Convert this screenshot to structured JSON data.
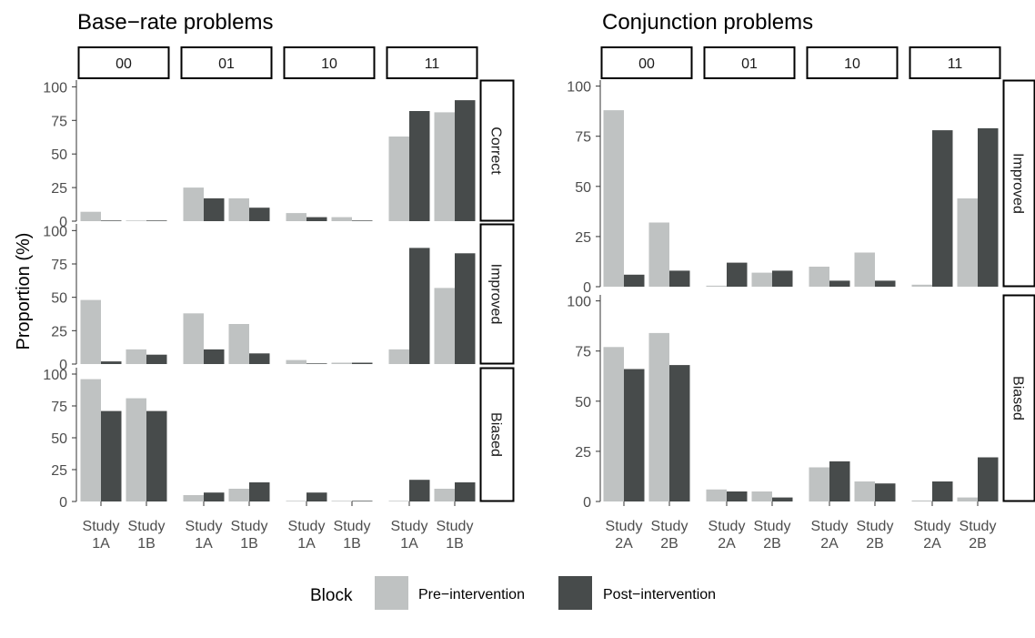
{
  "colors": {
    "pre": "#bfc2c2",
    "post": "#474b4b"
  },
  "ylabel": "Proportion (%)",
  "legend": {
    "title": "Block",
    "items": [
      {
        "key": "pre",
        "label": "Pre−intervention"
      },
      {
        "key": "post",
        "label": "Post−intervention"
      }
    ]
  },
  "chart_data": [
    {
      "type": "bar",
      "title": "Base−rate problems",
      "columns": [
        "00",
        "01",
        "10",
        "11"
      ],
      "rows": [
        "Correct",
        "Improved",
        "Biased"
      ],
      "categories": [
        [
          "Study",
          "1A"
        ],
        [
          "Study",
          "1B"
        ]
      ],
      "yticks": [
        0,
        25,
        50,
        75,
        100
      ],
      "ylim": [
        0,
        105
      ],
      "series": [
        {
          "name": "Pre−intervention",
          "key": "pre",
          "values": {
            "Correct": [
              [
                7,
                0.5
              ],
              [
                25,
                17
              ],
              [
                6,
                3
              ],
              [
                63,
                81
              ]
            ],
            "Improved": [
              [
                48,
                11
              ],
              [
                38,
                30
              ],
              [
                3,
                1
              ],
              [
                11,
                57
              ]
            ],
            "Biased": [
              [
                96,
                81
              ],
              [
                5,
                10
              ],
              [
                0.5,
                0.5
              ],
              [
                0.5,
                10
              ]
            ]
          }
        },
        {
          "name": "Post−intervention",
          "key": "post",
          "values": {
            "Correct": [
              [
                0.5,
                0.5
              ],
              [
                17,
                10
              ],
              [
                3,
                0.5
              ],
              [
                82,
                90
              ]
            ],
            "Improved": [
              [
                2,
                7
              ],
              [
                11,
                8
              ],
              [
                0.5,
                1
              ],
              [
                87,
                83
              ]
            ],
            "Biased": [
              [
                71,
                71
              ],
              [
                7,
                15
              ],
              [
                7,
                0.5
              ],
              [
                17,
                15
              ]
            ]
          }
        }
      ]
    },
    {
      "type": "bar",
      "title": "Conjunction problems",
      "columns": [
        "00",
        "01",
        "10",
        "11"
      ],
      "rows": [
        "Improved",
        "Biased"
      ],
      "categories": [
        [
          "Study",
          "2A"
        ],
        [
          "Study",
          "2B"
        ]
      ],
      "yticks": [
        0,
        25,
        50,
        75,
        100
      ],
      "ylim": [
        0,
        103
      ],
      "series": [
        {
          "name": "Pre−intervention",
          "key": "pre",
          "values": {
            "Improved": [
              [
                88,
                32
              ],
              [
                0.5,
                7
              ],
              [
                10,
                17
              ],
              [
                1,
                44
              ]
            ],
            "Biased": [
              [
                77,
                84
              ],
              [
                6,
                5
              ],
              [
                17,
                10
              ],
              [
                0.5,
                2
              ]
            ]
          }
        },
        {
          "name": "Post−intervention",
          "key": "post",
          "values": {
            "Improved": [
              [
                6,
                8
              ],
              [
                12,
                8
              ],
              [
                3,
                3
              ],
              [
                78,
                79
              ]
            ],
            "Biased": [
              [
                66,
                68
              ],
              [
                5,
                2
              ],
              [
                20,
                9
              ],
              [
                10,
                22
              ]
            ]
          }
        }
      ]
    }
  ]
}
